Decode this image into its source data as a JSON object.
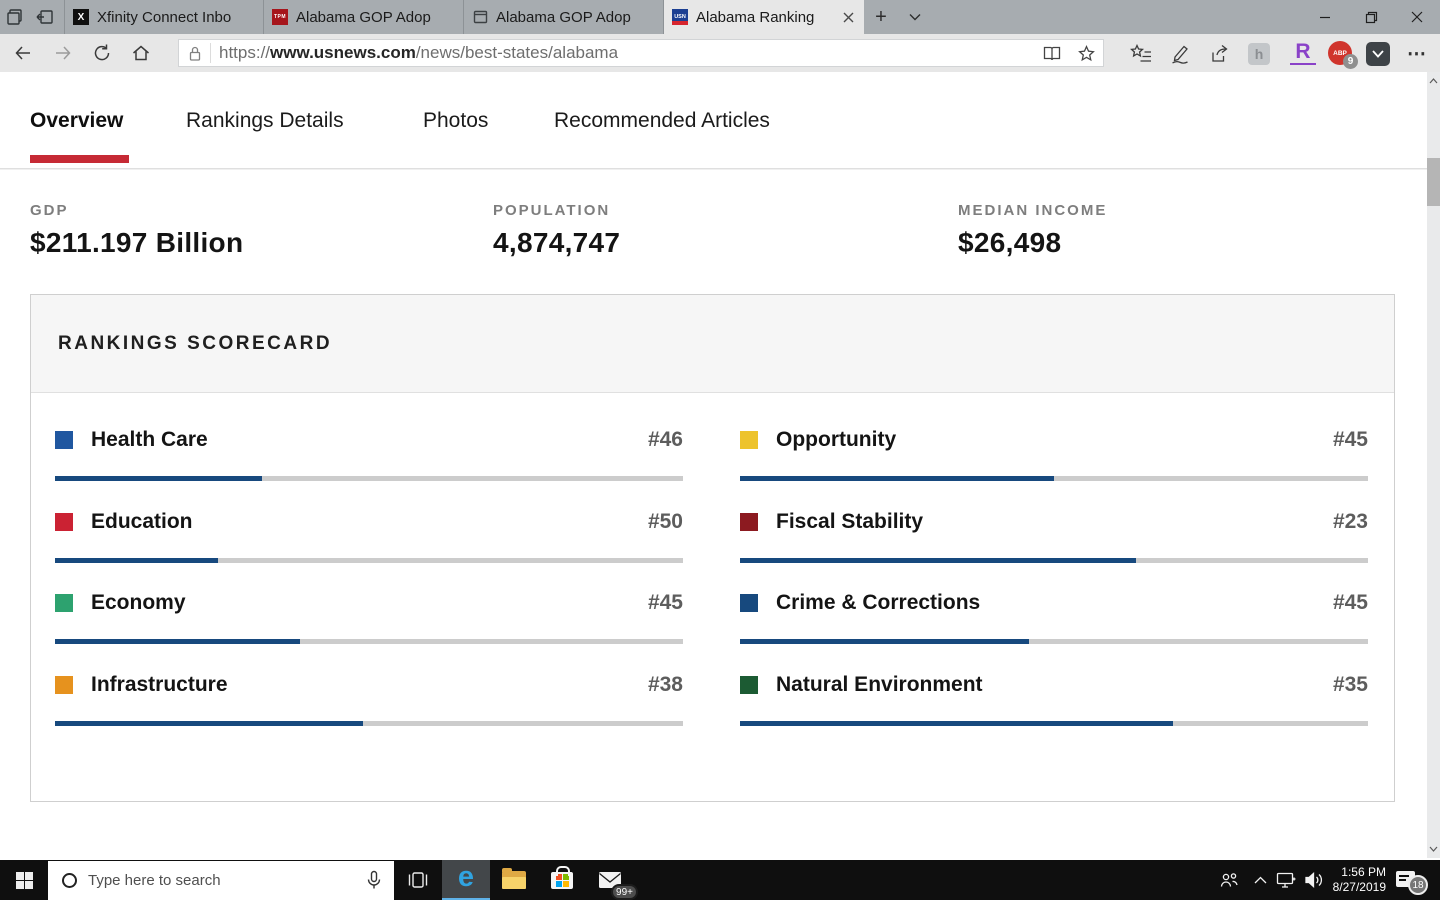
{
  "icons": {
    "new_tab": "+",
    "more_options": "⋯",
    "edge_logo": "e",
    "extension_h": "h",
    "extension_r": "R",
    "adblock_text": "ABP"
  },
  "browser": {
    "tab_bar": {
      "tabs": [
        {
          "title": "Xfinity Connect Inbo",
          "favicon_text": "X",
          "active": false
        },
        {
          "title": "Alabama GOP Adop",
          "favicon_text": "TPM",
          "active": false
        },
        {
          "title": "Alabama GOP Adop",
          "favicon_text": "",
          "active": false
        },
        {
          "title": "Alabama Ranking",
          "favicon_text": "USN",
          "active": true
        }
      ]
    },
    "address_bar": {
      "url_scheme": "https://",
      "url_domain": "www.usnews.com",
      "url_path": "/news/best-states/alabama",
      "adblock_badge": "9"
    }
  },
  "page": {
    "nav_tabs": [
      {
        "label": "Overview",
        "active": true
      },
      {
        "label": "Rankings Details",
        "active": false
      },
      {
        "label": "Photos",
        "active": false
      },
      {
        "label": "Recommended Articles",
        "active": false
      }
    ],
    "stats": [
      {
        "label": "GDP",
        "value": "$211.197 Billion"
      },
      {
        "label": "POPULATION",
        "value": "4,874,747"
      },
      {
        "label": "MEDIAN INCOME",
        "value": "$26,498"
      }
    ],
    "scorecard": {
      "title": "RANKINGS SCORECARD",
      "bar_fill_color": "#17497e",
      "bar_track_color": "#cccccc",
      "items": [
        {
          "label": "Health Care",
          "rank": "#46",
          "color": "#2057a0",
          "fill_pct": 33
        },
        {
          "label": "Education",
          "rank": "#50",
          "color": "#cb2233",
          "fill_pct": 26
        },
        {
          "label": "Economy",
          "rank": "#45",
          "color": "#2da26f",
          "fill_pct": 39
        },
        {
          "label": "Infrastructure",
          "rank": "#38",
          "color": "#e6921e",
          "fill_pct": 49
        },
        {
          "label": "Opportunity",
          "rank": "#45",
          "color": "#edc32c",
          "fill_pct": 50
        },
        {
          "label": "Fiscal Stability",
          "rank": "#23",
          "color": "#8c1a20",
          "fill_pct": 63
        },
        {
          "label": "Crime & Corrections",
          "rank": "#45",
          "color": "#17497e",
          "fill_pct": 46
        },
        {
          "label": "Natural Environment",
          "rank": "#35",
          "color": "#1c5b33",
          "fill_pct": 69
        }
      ]
    }
  },
  "taskbar": {
    "search_placeholder": "Type here to search",
    "mail_badge": "99+",
    "notification_badge": "18",
    "clock_time": "1:56 PM",
    "clock_date": "8/27/2019"
  }
}
